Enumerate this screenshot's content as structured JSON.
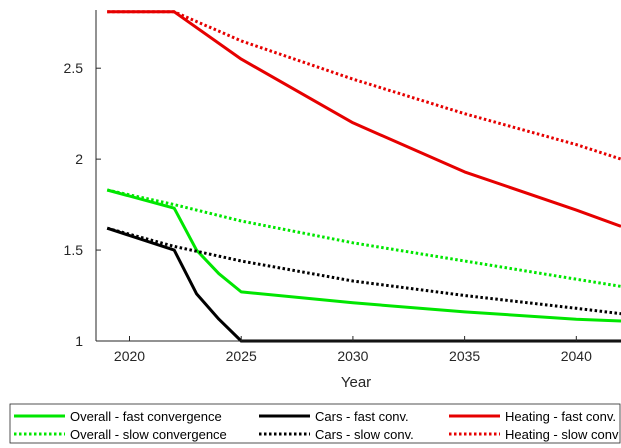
{
  "chart_data": {
    "type": "line",
    "xlabel": "Year",
    "ylabel": "",
    "xlim": [
      2018.5,
      2042
    ],
    "ylim": [
      1,
      2.82
    ],
    "xticks": [
      "2020",
      "2025",
      "2030",
      "2035",
      "2040"
    ],
    "yticks": [
      "1",
      "1.5",
      "2",
      "2.5"
    ],
    "legend": {
      "placement": "bottom-outside",
      "columns": 3
    },
    "series": [
      {
        "name": "Overall - fast convergence",
        "color": "#00e600",
        "dash": "solid",
        "x": [
          2019,
          2022,
          2023,
          2024,
          2025,
          2030,
          2035,
          2040,
          2042
        ],
        "y": [
          1.83,
          1.73,
          1.5,
          1.37,
          1.27,
          1.21,
          1.16,
          1.12,
          1.11
        ]
      },
      {
        "name": "Overall - slow convergence",
        "color": "#00e600",
        "dash": "dotted",
        "x": [
          2019,
          2022,
          2025,
          2030,
          2035,
          2040,
          2042
        ],
        "y": [
          1.83,
          1.75,
          1.66,
          1.54,
          1.44,
          1.34,
          1.3
        ]
      },
      {
        "name": "Cars - fast conv.",
        "color": "#000000",
        "dash": "solid",
        "x": [
          2019,
          2022,
          2023,
          2024,
          2025,
          2030,
          2035,
          2040,
          2042
        ],
        "y": [
          1.62,
          1.5,
          1.26,
          1.12,
          1.0,
          1.0,
          1.0,
          1.0,
          1.0
        ]
      },
      {
        "name": "Cars - slow conv.",
        "color": "#000000",
        "dash": "dotted",
        "x": [
          2019,
          2022,
          2025,
          2030,
          2035,
          2040,
          2042
        ],
        "y": [
          1.62,
          1.52,
          1.44,
          1.33,
          1.25,
          1.18,
          1.15
        ]
      },
      {
        "name": "Heating - fast conv.",
        "color": "#e60000",
        "dash": "solid",
        "x": [
          2019,
          2022,
          2025,
          2030,
          2035,
          2040,
          2042
        ],
        "y": [
          2.81,
          2.81,
          2.55,
          2.2,
          1.93,
          1.72,
          1.63
        ]
      },
      {
        "name": "Heating - slow conv",
        "color": "#e60000",
        "dash": "dotted",
        "x": [
          2019,
          2022,
          2025,
          2030,
          2035,
          2040,
          2042
        ],
        "y": [
          2.81,
          2.81,
          2.65,
          2.44,
          2.25,
          2.08,
          2.0
        ]
      }
    ]
  }
}
